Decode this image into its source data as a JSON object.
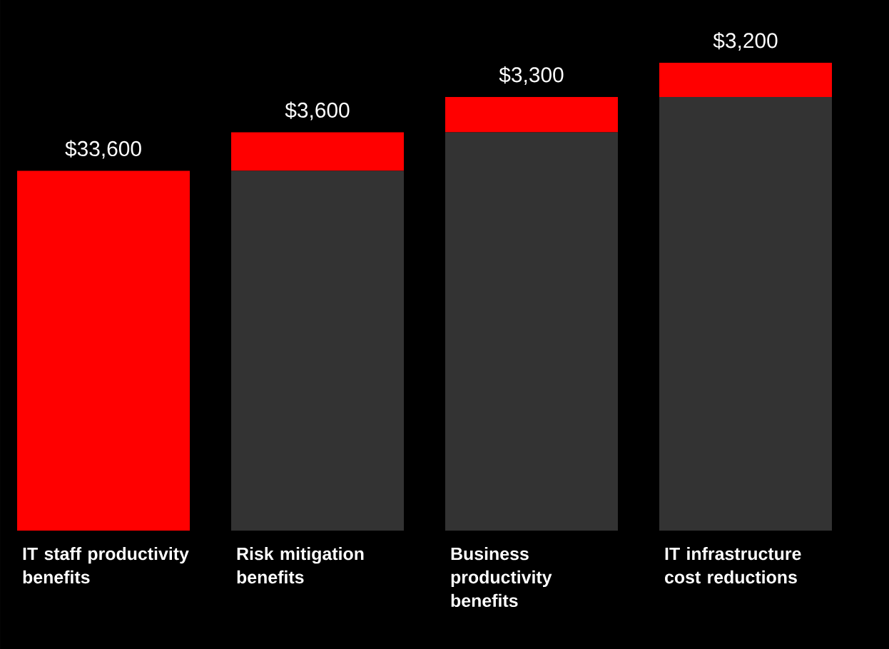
{
  "chart_data": {
    "type": "bar",
    "stacked": true,
    "categories": [
      "IT staff productivity benefits",
      "Risk mitigation benefits",
      "Business productivity benefits",
      "IT infrastructure cost reductions"
    ],
    "series": [
      {
        "color": "#333333",
        "values": [
          0,
          33600,
          37200,
          40500
        ]
      },
      {
        "color": "#ff0000",
        "values": [
          33600,
          3600,
          3300,
          3200
        ],
        "value_labels": [
          "$33,600",
          "$3,600",
          "$3,300",
          "$3,200"
        ]
      }
    ]
  }
}
